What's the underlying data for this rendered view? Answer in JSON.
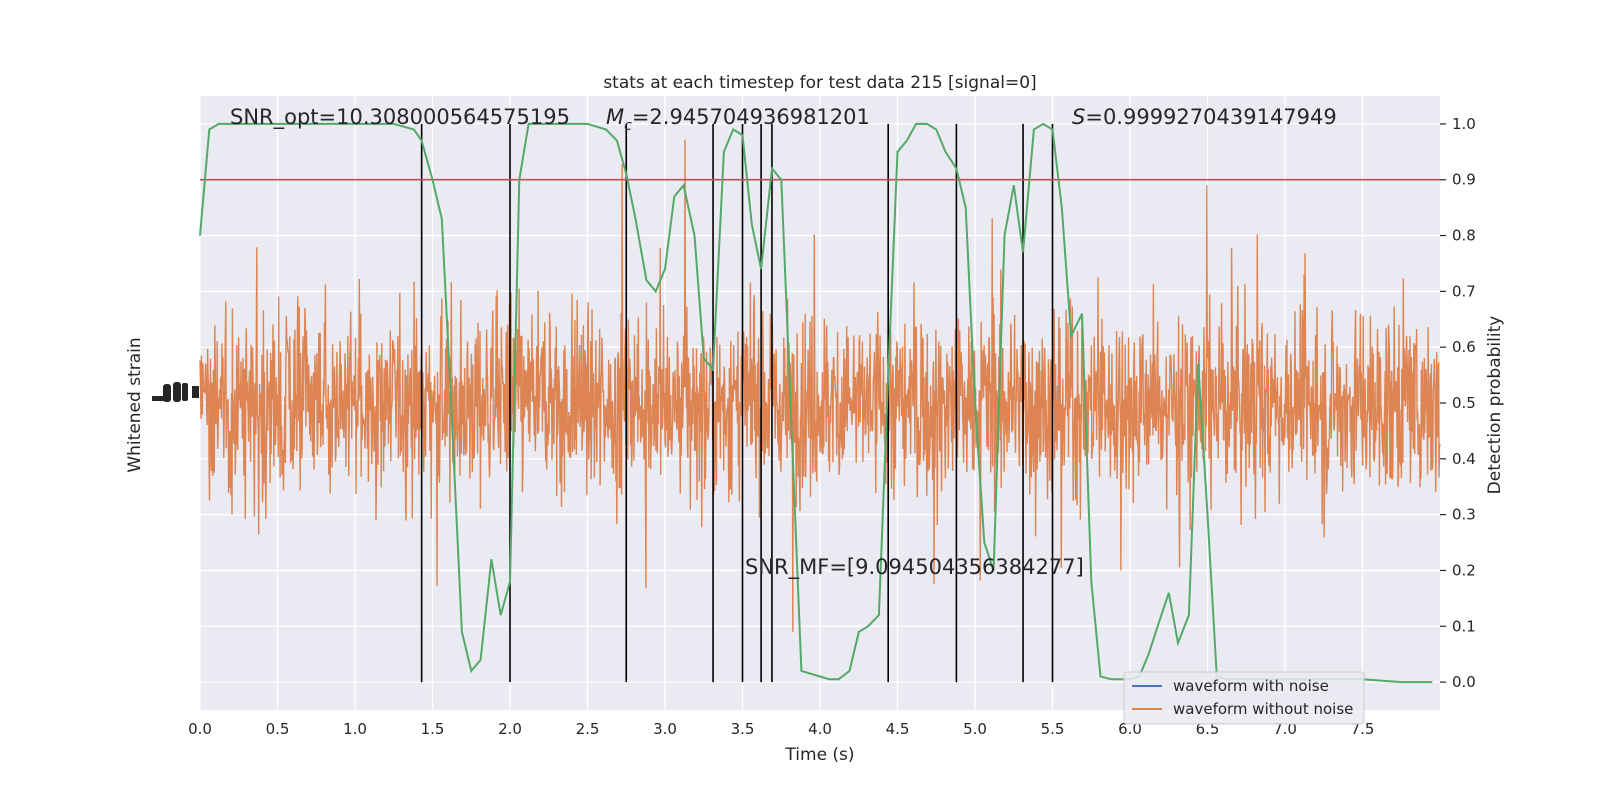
{
  "chart_data": {
    "type": "line",
    "title": "stats at each timestep for test data 215 [signal=0]",
    "xlabel": "Time (s)",
    "ylabel_left": "Whitened strain",
    "ylabel_right": "Detection probability",
    "xlim": [
      0.0,
      8.0
    ],
    "ylim_right": [
      -0.05,
      1.05
    ],
    "x_ticks": [
      "0.0",
      "0.5",
      "1.0",
      "1.5",
      "2.0",
      "2.5",
      "3.0",
      "3.5",
      "4.0",
      "4.5",
      "5.0",
      "5.5",
      "6.0",
      "6.5",
      "7.0",
      "7.5"
    ],
    "y_ticks_right": [
      "0.0",
      "0.1",
      "0.2",
      "0.3",
      "0.4",
      "0.5",
      "0.6",
      "0.7",
      "0.8",
      "0.9",
      "1.0"
    ],
    "grid": true,
    "legend_position": "lower-right",
    "threshold": 0.9,
    "threshold_color": "#c44e52",
    "annotations": {
      "snr_opt": "SNR_opt=10.308000564575195",
      "mc_symbol": "M",
      "mc_sub": "c",
      "mc_value": "=2.945704936981201",
      "s_symbol": "S",
      "s_value": "=0.9999270439147949",
      "snr_mf": "SNR_MF=[9.094504356384277]"
    },
    "vertical_lines_x": [
      1.43,
      2.0,
      2.75,
      3.31,
      3.5,
      3.62,
      3.69,
      4.44,
      4.88,
      5.31,
      5.5
    ],
    "series": [
      {
        "name": "waveform with noise",
        "color": "#4c72b0"
      },
      {
        "name": "waveform without noise",
        "color": "#dd8452"
      },
      {
        "color": "#55a868",
        "x": [
          0.0,
          0.06,
          0.12,
          0.25,
          0.5,
          0.75,
          1.0,
          1.25,
          1.38,
          1.43,
          1.5,
          1.56,
          1.62,
          1.69,
          1.75,
          1.81,
          1.88,
          1.94,
          2.0,
          2.06,
          2.12,
          2.25,
          2.5,
          2.62,
          2.69,
          2.75,
          2.81,
          2.88,
          2.94,
          3.0,
          3.06,
          3.12,
          3.19,
          3.25,
          3.31,
          3.38,
          3.44,
          3.5,
          3.56,
          3.62,
          3.69,
          3.75,
          3.81,
          3.88,
          4.0,
          4.06,
          4.12,
          4.19,
          4.25,
          4.31,
          4.38,
          4.44,
          4.5,
          4.56,
          4.62,
          4.69,
          4.75,
          4.81,
          4.88,
          4.94,
          5.0,
          5.06,
          5.12,
          5.19,
          5.25,
          5.31,
          5.38,
          5.44,
          5.5,
          5.56,
          5.62,
          5.69,
          5.75,
          5.81,
          5.88,
          5.94,
          6.0,
          6.06,
          6.12,
          6.19,
          6.25,
          6.31,
          6.38,
          6.44,
          6.5,
          6.56,
          6.62,
          6.69,
          6.75,
          7.0,
          7.5,
          7.75,
          7.95
        ],
        "values": [
          0.8,
          0.99,
          1.0,
          1.0,
          1.0,
          1.0,
          1.0,
          1.0,
          0.99,
          0.97,
          0.9,
          0.83,
          0.5,
          0.09,
          0.02,
          0.04,
          0.22,
          0.12,
          0.18,
          0.9,
          1.0,
          1.0,
          1.0,
          0.99,
          0.97,
          0.91,
          0.83,
          0.72,
          0.7,
          0.74,
          0.87,
          0.89,
          0.8,
          0.58,
          0.56,
          0.95,
          0.99,
          0.98,
          0.82,
          0.74,
          0.92,
          0.9,
          0.5,
          0.02,
          0.01,
          0.005,
          0.005,
          0.02,
          0.09,
          0.1,
          0.12,
          0.55,
          0.95,
          0.97,
          1.0,
          1.0,
          0.99,
          0.95,
          0.92,
          0.85,
          0.5,
          0.25,
          0.2,
          0.8,
          0.89,
          0.77,
          0.99,
          1.0,
          0.99,
          0.85,
          0.62,
          0.66,
          0.18,
          0.01,
          0.005,
          0.005,
          0.005,
          0.01,
          0.05,
          0.11,
          0.16,
          0.07,
          0.12,
          0.57,
          0.3,
          0.01,
          0.005,
          0.005,
          0.005,
          0.005,
          0.005,
          0.0,
          0.0
        ]
      }
    ]
  }
}
